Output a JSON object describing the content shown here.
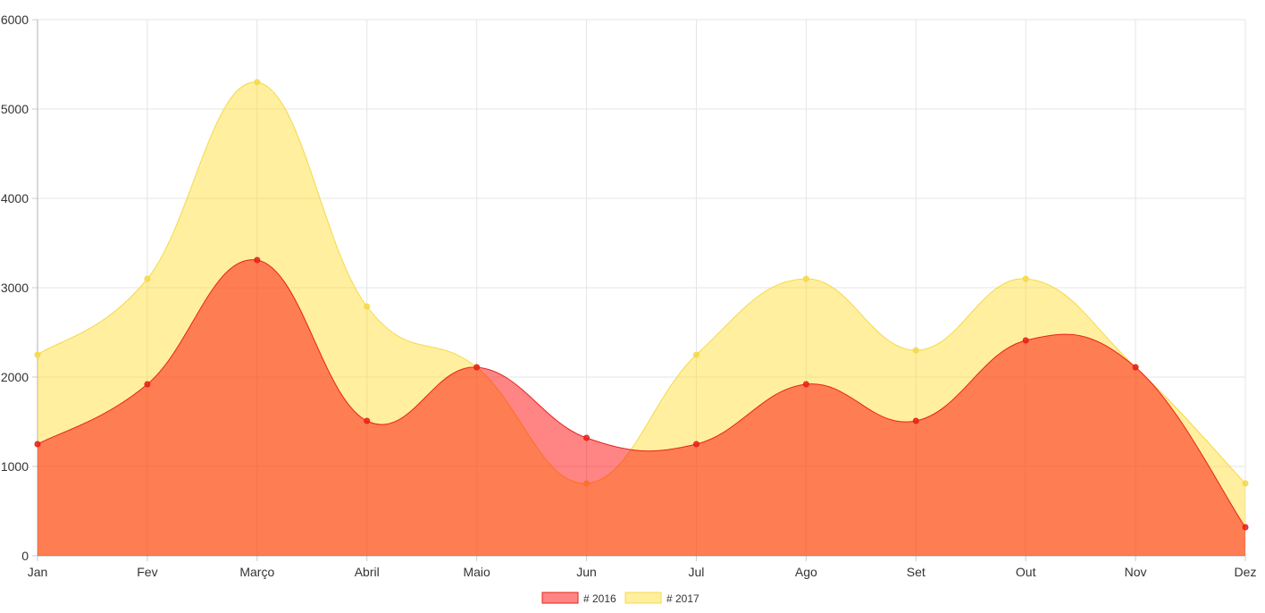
{
  "chart_data": {
    "type": "area",
    "title": "",
    "xlabel": "",
    "ylabel": "",
    "categories": [
      "Jan",
      "Fev",
      "Março",
      "Abril",
      "Maio",
      "Jun",
      "Jul",
      "Ago",
      "Set",
      "Out",
      "Nov",
      "Dez"
    ],
    "ylim": [
      0,
      6000
    ],
    "yticks": [
      0,
      1000,
      2000,
      3000,
      4000,
      5000,
      6000
    ],
    "grid": true,
    "legend_position": "bottom",
    "series": [
      {
        "name": "# 2016",
        "values": [
          1250,
          1920,
          3310,
          1510,
          2110,
          1320,
          1250,
          1920,
          1510,
          2410,
          2110,
          320
        ],
        "fill": "rgba(255, 0, 0, 0.48)",
        "stroke": "#e8221b",
        "point": "#e8221b"
      },
      {
        "name": "# 2017",
        "values": [
          2250,
          3100,
          5300,
          2790,
          2110,
          810,
          2250,
          3100,
          2300,
          3100,
          2110,
          810
        ],
        "fill": "rgba(255, 220, 40, 0.45)",
        "stroke": "#f5d94a",
        "point": "#f5d94a"
      }
    ]
  }
}
